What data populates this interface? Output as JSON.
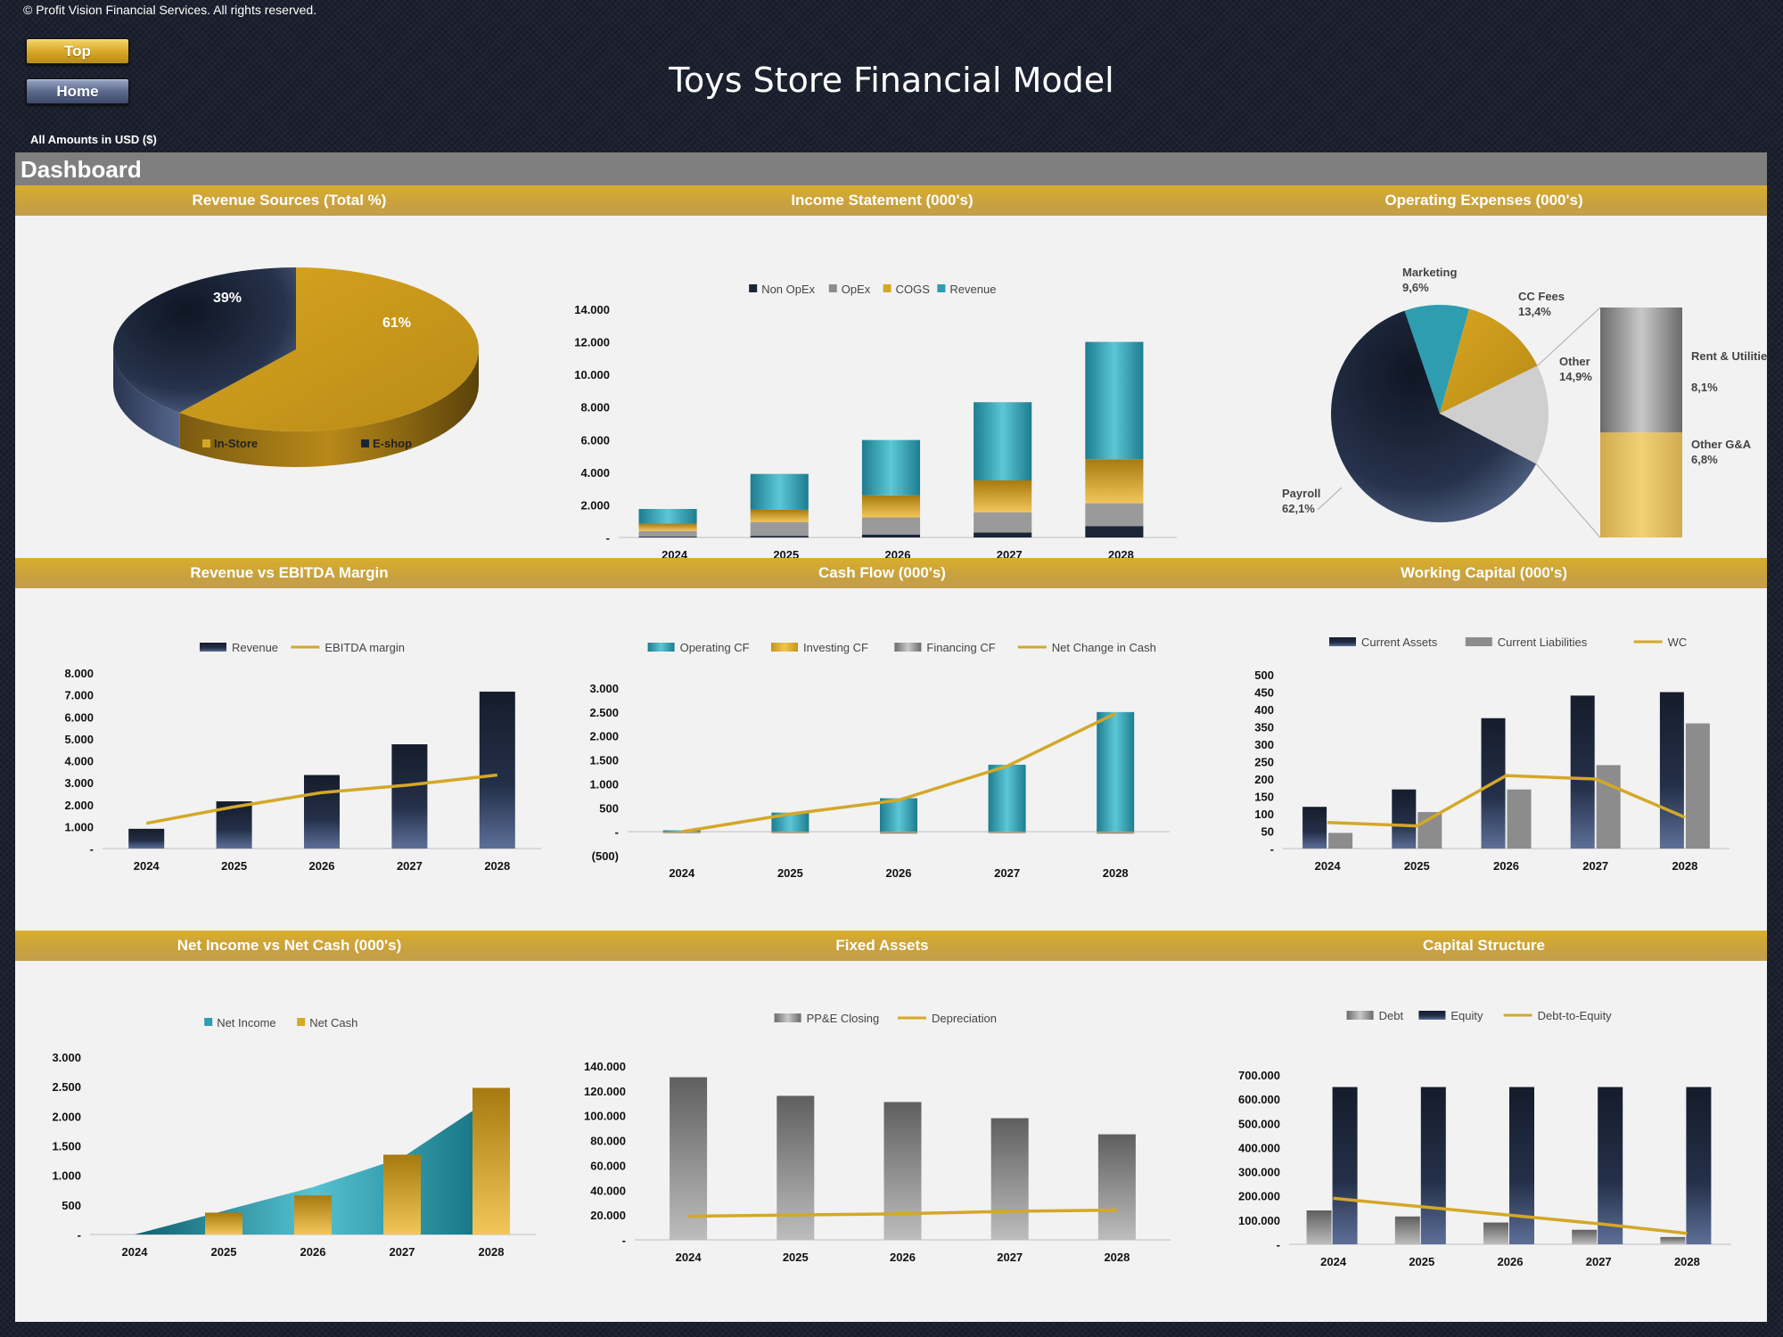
{
  "header": {
    "copyright": "© Profit Vision Financial Services. All rights reserved.",
    "top_button": "Top",
    "home_button": "Home",
    "title": "Toys Store Financial Model",
    "amounts_note": "All Amounts in  USD ($)"
  },
  "dashboard": {
    "title": "Dashboard"
  },
  "colors": {
    "gold": "#d4a827",
    "navy": "#1b2538",
    "teal": "#2f9db0",
    "gray": "#8c8c8c",
    "light_gray": "#cfcfcf"
  },
  "section_titles": {
    "revenue_sources": "Revenue Sources (Total %)",
    "income_statement": "Income Statement (000's)",
    "operating_expenses": "Operating Expenses (000's)",
    "revenue_ebitda": "Revenue vs EBITDA Margin",
    "cash_flow": "Cash Flow (000's)",
    "working_capital": "Working Capital (000's)",
    "net_income_cash": "Net Income vs Net Cash (000's)",
    "fixed_assets": "Fixed Assets",
    "capital_structure": "Capital Structure"
  },
  "chart_data": [
    {
      "id": "revenue_sources",
      "type": "pie",
      "title": "Revenue Sources (Total %)",
      "categories": [
        "In-Store",
        "E-shop"
      ],
      "values": [
        61,
        39
      ],
      "labels": [
        "61%",
        "39%"
      ],
      "legend_position": "bottom"
    },
    {
      "id": "income_statement",
      "type": "bar",
      "stacked": true,
      "title": "Income Statement (000's)",
      "categories": [
        "2024",
        "2025",
        "2026",
        "2027",
        "2028"
      ],
      "y_ticks": [
        "-",
        "2.000",
        "4.000",
        "6.000",
        "8.000",
        "10.000",
        "12.000",
        "14.000"
      ],
      "ylim": [
        0,
        14000
      ],
      "series": [
        {
          "name": "Non OpEx",
          "values": [
            50,
            100,
            180,
            300,
            700
          ]
        },
        {
          "name": "OpEx",
          "values": [
            350,
            850,
            1050,
            1250,
            1400
          ]
        },
        {
          "name": "COGS",
          "values": [
            450,
            750,
            1350,
            1950,
            2700
          ]
        },
        {
          "name": "Revenue",
          "values": [
            900,
            2200,
            3400,
            4800,
            7200
          ]
        }
      ],
      "legend_position": "top"
    },
    {
      "id": "operating_expenses",
      "type": "pie",
      "variant": "bar-of-pie",
      "title": "Operating Expenses (000's)",
      "categories": [
        "Payroll",
        "Marketing",
        "CC Fees",
        "Other",
        "Rent & Utilities",
        "Other G&A"
      ],
      "values": [
        62.1,
        9.6,
        13.4,
        14.9,
        8.1,
        6.8
      ],
      "labels": [
        "62,1%",
        "9,6%",
        "13,4%",
        "14,9%",
        "8,1%",
        "6,8%"
      ],
      "split": {
        "Other": [
          "Rent & Utilities",
          "Other G&A"
        ]
      }
    },
    {
      "id": "revenue_ebitda",
      "type": "bar",
      "title": "Revenue vs EBITDA Margin",
      "categories": [
        "2024",
        "2025",
        "2026",
        "2027",
        "2028"
      ],
      "y_ticks": [
        "-",
        "1.000",
        "2.000",
        "3.000",
        "4.000",
        "5.000",
        "6.000",
        "7.000",
        "8.000"
      ],
      "ylim": [
        0,
        8000
      ],
      "series": [
        {
          "name": "Revenue",
          "type": "bar",
          "values": [
            900,
            2150,
            3350,
            4750,
            7150
          ]
        },
        {
          "name": "EBITDA margin",
          "type": "line",
          "values": [
            1150,
            1900,
            2550,
            2900,
            3350
          ]
        }
      ],
      "legend_position": "top"
    },
    {
      "id": "cash_flow",
      "type": "bar",
      "title": "Cash Flow (000's)",
      "categories": [
        "2024",
        "2025",
        "2026",
        "2027",
        "2028"
      ],
      "y_ticks": [
        "(500)",
        "-",
        "500",
        "1.000",
        "1.500",
        "2.000",
        "2.500",
        "3.000"
      ],
      "ylim": [
        -500,
        3000
      ],
      "series": [
        {
          "name": "Operating CF",
          "type": "bar",
          "values": [
            30,
            400,
            700,
            1400,
            2500
          ]
        },
        {
          "name": "Investing CF",
          "type": "bar",
          "values": [
            -10,
            -10,
            -10,
            -10,
            -10
          ]
        },
        {
          "name": "Financing CF",
          "type": "bar",
          "values": [
            -20,
            -20,
            -30,
            -20,
            -30
          ]
        },
        {
          "name": "Net Change in Cash",
          "type": "line",
          "values": [
            0,
            370,
            660,
            1370,
            2470
          ]
        }
      ],
      "legend_position": "top"
    },
    {
      "id": "working_capital",
      "type": "bar",
      "title": "Working Capital (000's)",
      "categories": [
        "2024",
        "2025",
        "2026",
        "2027",
        "2028"
      ],
      "y_ticks": [
        "-",
        "50",
        "100",
        "150",
        "200",
        "250",
        "300",
        "350",
        "400",
        "450",
        "500"
      ],
      "ylim": [
        0,
        500
      ],
      "series": [
        {
          "name": "Current Assets",
          "type": "bar",
          "values": [
            120,
            170,
            375,
            440,
            450
          ]
        },
        {
          "name": "Current Liabilities",
          "type": "bar",
          "values": [
            45,
            105,
            170,
            240,
            360
          ]
        },
        {
          "name": "WC",
          "type": "line",
          "values": [
            75,
            65,
            210,
            200,
            90
          ]
        }
      ],
      "legend_position": "top"
    },
    {
      "id": "net_income_cash",
      "type": "area",
      "title": "Net Income vs Net Cash (000's)",
      "categories": [
        "2024",
        "2025",
        "2026",
        "2027",
        "2028"
      ],
      "y_ticks": [
        "-",
        "500",
        "1.000",
        "1.500",
        "2.000",
        "2.500",
        "3.000"
      ],
      "ylim": [
        0,
        3000
      ],
      "series": [
        {
          "name": "Net Income",
          "type": "area",
          "values": [
            0,
            400,
            800,
            1300,
            2300
          ]
        },
        {
          "name": "Net Cash",
          "type": "bar",
          "values": [
            0,
            370,
            660,
            1350,
            2480
          ]
        }
      ],
      "legend_position": "top"
    },
    {
      "id": "fixed_assets",
      "type": "bar",
      "title": "Fixed Assets",
      "categories": [
        "2024",
        "2025",
        "2026",
        "2027",
        "2028"
      ],
      "y_ticks": [
        "-",
        "20.000",
        "40.000",
        "60.000",
        "80.000",
        "100.000",
        "120.000",
        "140.000"
      ],
      "ylim": [
        0,
        140000
      ],
      "series": [
        {
          "name": "PP&E Closing",
          "type": "bar",
          "values": [
            131000,
            116000,
            111000,
            98000,
            85000
          ]
        },
        {
          "name": "Depreciation",
          "type": "line",
          "values": [
            19000,
            20000,
            21000,
            23000,
            24000
          ]
        }
      ],
      "legend_position": "top"
    },
    {
      "id": "capital_structure",
      "type": "bar",
      "title": "Capital Structure",
      "categories": [
        "2024",
        "2025",
        "2026",
        "2027",
        "2028"
      ],
      "y_ticks": [
        "-",
        "100.000",
        "200.000",
        "300.000",
        "400.000",
        "500.000",
        "600.000",
        "700.000"
      ],
      "ylim": [
        0,
        700000
      ],
      "series": [
        {
          "name": "Debt",
          "type": "bar",
          "values": [
            140000,
            115000,
            90000,
            60000,
            30000
          ]
        },
        {
          "name": "Equity",
          "type": "bar",
          "values": [
            650000,
            650000,
            650000,
            650000,
            650000
          ]
        },
        {
          "name": "Debt-to-Equity",
          "type": "line",
          "values": [
            190000,
            155000,
            120000,
            85000,
            45000
          ]
        }
      ],
      "legend_position": "top"
    }
  ]
}
